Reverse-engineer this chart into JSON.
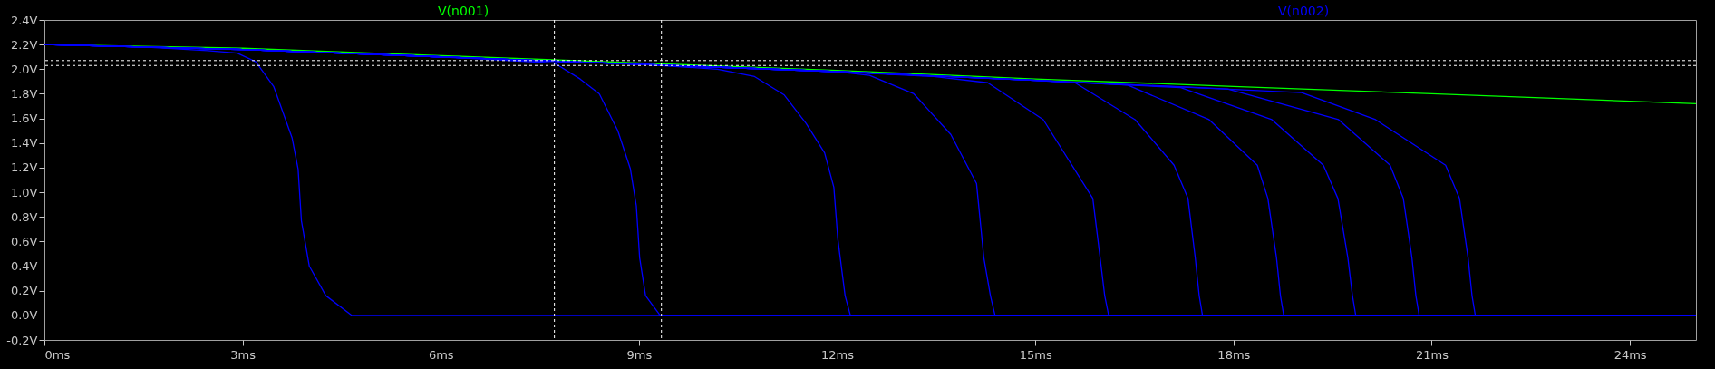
{
  "chart_data": {
    "type": "line",
    "xlim": [
      0,
      25
    ],
    "ylim": [
      -0.2,
      2.4
    ],
    "xticks": [
      {
        "value": 0,
        "label": "0ms"
      },
      {
        "value": 3,
        "label": "3ms"
      },
      {
        "value": 6,
        "label": "6ms"
      },
      {
        "value": 9,
        "label": "9ms"
      },
      {
        "value": 12,
        "label": "12ms"
      },
      {
        "value": 15,
        "label": "15ms"
      },
      {
        "value": 18,
        "label": "18ms"
      },
      {
        "value": 21,
        "label": "21ms"
      },
      {
        "value": 24,
        "label": "24ms"
      }
    ],
    "yticks": [
      {
        "value": -0.2,
        "label": "-0.2V"
      },
      {
        "value": 0,
        "label": "0.0V"
      },
      {
        "value": 0.2,
        "label": "0.2V"
      },
      {
        "value": 0.4,
        "label": "0.4V"
      },
      {
        "value": 0.6,
        "label": "0.6V"
      },
      {
        "value": 0.8,
        "label": "0.8V"
      },
      {
        "value": 1.0,
        "label": "1.0V"
      },
      {
        "value": 1.2,
        "label": "1.2V"
      },
      {
        "value": 1.4,
        "label": "1.4V"
      },
      {
        "value": 1.6,
        "label": "1.6V"
      },
      {
        "value": 1.8,
        "label": "1.8V"
      },
      {
        "value": 2.0,
        "label": "2.0V"
      },
      {
        "value": 2.2,
        "label": "2.2V"
      },
      {
        "value": 2.4,
        "label": "2.4V"
      }
    ],
    "grid": false,
    "legend": "top",
    "line_style": "solid",
    "ref_lines": [
      {
        "axis": "x",
        "value": 7.72,
        "color": "#ffffff",
        "line_style": "dashed"
      },
      {
        "axis": "x",
        "value": 9.34,
        "color": "#ffffff",
        "line_style": "dashed"
      },
      {
        "axis": "y",
        "value": 2.07,
        "color": "#ffffff",
        "line_style": "dashed"
      },
      {
        "axis": "y",
        "value": 2.03,
        "color": "#ffffff",
        "line_style": "dashed"
      }
    ],
    "series": [
      {
        "name": "V(n001)",
        "color": "#00ff00",
        "x": [
          0,
          3,
          6,
          9,
          12,
          15,
          18,
          21,
          24,
          25
        ],
        "values": [
          2.2,
          2.17,
          2.11,
          2.05,
          1.99,
          1.92,
          1.86,
          1.8,
          1.74,
          1.72
        ]
      },
      {
        "color": "#0000ff",
        "x": [
          0,
          1.5,
          2.47,
          2.92,
          3.2,
          3.47,
          3.75,
          3.84,
          3.89,
          4.01,
          4.26,
          4.65,
          25
        ],
        "values": [
          2.2,
          2.18,
          2.15,
          2.13,
          2.06,
          1.86,
          1.44,
          1.19,
          0.77,
          0.4,
          0.16,
          0,
          0
        ]
      },
      {
        "color": "#0000ff",
        "x": [
          0,
          3,
          6,
          7.72,
          8.11,
          8.4,
          8.68,
          8.87,
          8.96,
          9.01,
          9.1,
          9.32,
          25
        ],
        "values": [
          2.2,
          2.16,
          2.1,
          2.05,
          1.92,
          1.8,
          1.5,
          1.19,
          0.89,
          0.47,
          0.16,
          0,
          0
        ]
      },
      {
        "color": "#0000ff",
        "x": [
          0,
          3,
          6,
          9,
          10.19,
          10.75,
          11.2,
          11.53,
          11.81,
          11.95,
          12.01,
          12.12,
          12.2,
          25
        ],
        "values": [
          2.2,
          2.16,
          2.1,
          2.04,
          2.0,
          1.94,
          1.79,
          1.56,
          1.32,
          1.04,
          0.62,
          0.16,
          0,
          0
        ]
      },
      {
        "color": "#0000ff",
        "x": [
          0,
          3,
          6,
          9,
          12,
          12.49,
          13.16,
          13.72,
          14.11,
          14.22,
          14.32,
          14.39,
          25
        ],
        "values": [
          2.2,
          2.16,
          2.1,
          2.04,
          1.98,
          1.95,
          1.8,
          1.47,
          1.07,
          0.47,
          0.16,
          0,
          0
        ]
      },
      {
        "color": "#0000ff",
        "x": [
          0,
          3,
          6,
          9,
          12,
          13.46,
          14.28,
          15.12,
          15.87,
          15.98,
          16.05,
          16.11,
          25
        ],
        "values": [
          2.2,
          2.16,
          2.1,
          2.04,
          1.98,
          1.94,
          1.89,
          1.59,
          0.95,
          0.47,
          0.16,
          0,
          0
        ]
      },
      {
        "color": "#0000ff",
        "x": [
          0,
          3,
          6,
          9,
          12,
          15,
          15.6,
          16.51,
          17.1,
          17.31,
          17.42,
          17.48,
          17.53,
          25
        ],
        "values": [
          2.2,
          2.16,
          2.1,
          2.04,
          1.98,
          1.91,
          1.89,
          1.59,
          1.22,
          0.95,
          0.47,
          0.16,
          0,
          0
        ]
      },
      {
        "color": "#0000ff",
        "x": [
          0,
          3,
          6,
          9,
          12,
          15,
          16.4,
          17.63,
          18.36,
          18.52,
          18.65,
          18.71,
          18.76,
          25
        ],
        "values": [
          2.2,
          2.16,
          2.1,
          2.04,
          1.98,
          1.91,
          1.87,
          1.59,
          1.22,
          0.95,
          0.47,
          0.16,
          0,
          0
        ]
      },
      {
        "color": "#0000ff",
        "x": [
          0,
          3,
          6,
          9,
          12,
          15,
          17.2,
          18.58,
          19.36,
          19.58,
          19.73,
          19.8,
          19.85,
          25
        ],
        "values": [
          2.2,
          2.16,
          2.1,
          2.04,
          1.98,
          1.91,
          1.85,
          1.59,
          1.22,
          0.95,
          0.47,
          0.16,
          0,
          0
        ]
      },
      {
        "color": "#0000ff",
        "x": [
          0,
          3,
          6,
          9,
          12,
          15,
          17.91,
          19.59,
          20.37,
          20.57,
          20.7,
          20.76,
          20.81,
          25
        ],
        "values": [
          2.2,
          2.16,
          2.1,
          2.04,
          1.98,
          1.91,
          1.84,
          1.59,
          1.22,
          0.95,
          0.47,
          0.16,
          0,
          0
        ]
      },
      {
        "name": "V(n002)",
        "color": "#0000ff",
        "x": [
          0,
          3,
          6,
          9,
          12,
          15,
          19.03,
          20.15,
          21.21,
          21.42,
          21.55,
          21.61,
          21.66,
          25
        ],
        "values": [
          2.2,
          2.16,
          2.1,
          2.04,
          1.98,
          1.91,
          1.81,
          1.59,
          1.22,
          0.95,
          0.47,
          0.16,
          0,
          0
        ]
      }
    ]
  }
}
